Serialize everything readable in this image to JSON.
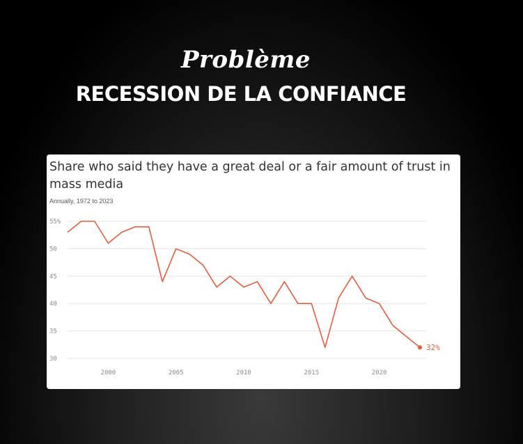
{
  "header": {
    "script_title": "Problème",
    "main_title": "RECESSION DE LA CONFIANCE"
  },
  "colors": {
    "line": "#e85a3a",
    "grid": "#e6e6e6",
    "card_bg": "#ffffff"
  },
  "chart_data": {
    "type": "line",
    "title": "Share who said they have a great deal or a fair amount of trust in mass media",
    "subtitle": "Annually, 1972 to 2023",
    "xlabel": "",
    "ylabel": "",
    "xlim": [
      1997,
      2023
    ],
    "ylim": [
      30,
      55
    ],
    "x_ticks": [
      2000,
      2005,
      2010,
      2015,
      2020
    ],
    "y_ticks": [
      {
        "value": 55,
        "label": "55%"
      },
      {
        "value": 50,
        "label": "50"
      },
      {
        "value": 45,
        "label": "45"
      },
      {
        "value": 40,
        "label": "40"
      },
      {
        "value": 35,
        "label": "35"
      },
      {
        "value": 30,
        "label": "30"
      }
    ],
    "grid": true,
    "end_label": "32%",
    "series": [
      {
        "x": [
          1997,
          1998,
          1999,
          2000,
          2001,
          2002,
          2003,
          2004,
          2005,
          2006,
          2007,
          2008,
          2009,
          2010,
          2011,
          2012,
          2013,
          2014,
          2015,
          2016,
          2017,
          2018,
          2019,
          2020,
          2021,
          2022,
          2023
        ],
        "values": [
          53,
          55,
          55,
          51,
          53,
          54,
          54,
          44,
          50,
          49,
          47,
          43,
          45,
          43,
          44,
          40,
          44,
          40,
          40,
          32,
          41,
          45,
          41,
          40,
          36,
          34,
          32
        ]
      }
    ]
  }
}
